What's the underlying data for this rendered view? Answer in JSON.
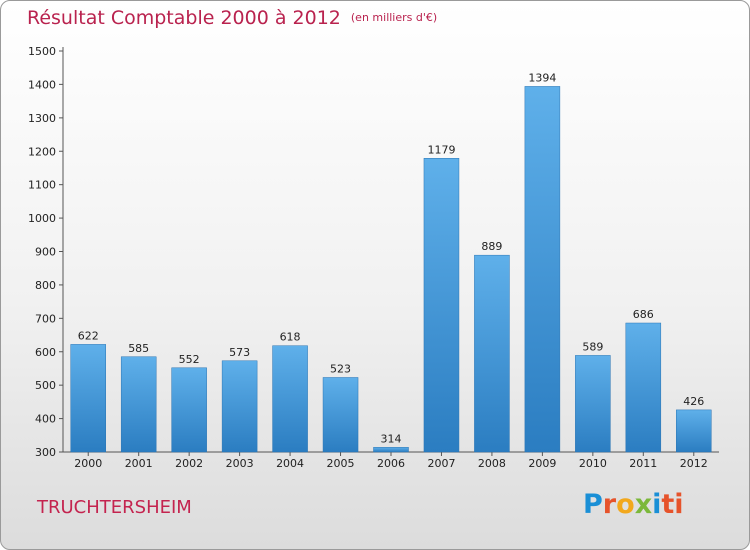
{
  "header": {
    "title": "Résultat Comptable 2000 à 2012",
    "subtitle": "(en milliers d'€)"
  },
  "footer": {
    "place": "TRUCHTERSHEIM",
    "logo_letters": [
      "P",
      "r",
      "o",
      "x",
      "i",
      "ti"
    ]
  },
  "colors": {
    "title": "#b9224e",
    "bar_top": "#5daee8",
    "bar_bottom": "#2a7ec2"
  },
  "chart_data": {
    "type": "bar",
    "title": "Résultat Comptable 2000 à 2012",
    "subtitle": "(en milliers d'€)",
    "categories": [
      "2000",
      "2001",
      "2002",
      "2003",
      "2004",
      "2005",
      "2006",
      "2007",
      "2008",
      "2009",
      "2010",
      "2011",
      "2012"
    ],
    "values": [
      622,
      585,
      552,
      573,
      618,
      523,
      314,
      1179,
      889,
      1394,
      589,
      686,
      426
    ],
    "yticks": [
      300,
      400,
      500,
      600,
      700,
      800,
      900,
      1000,
      1100,
      1200,
      1300,
      1400,
      1500
    ],
    "ylim": [
      300,
      1500
    ],
    "grid": false
  }
}
